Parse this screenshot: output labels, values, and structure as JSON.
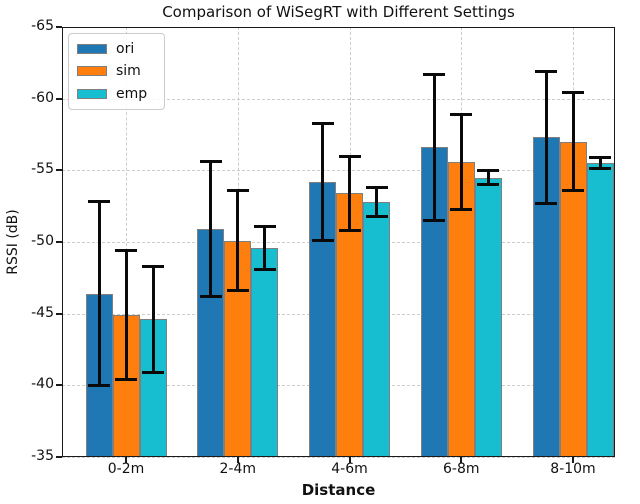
{
  "chart_data": {
    "type": "bar",
    "title": "Comparison of WiSegRT with Different Settings",
    "xlabel": "Distance",
    "ylabel": "RSSI (dB)",
    "categories": [
      "0-2m",
      "2-4m",
      "4-6m",
      "6-8m",
      "8-10m"
    ],
    "series": [
      {
        "name": "ori",
        "color": "#1f77b4",
        "values": [
          -46.4,
          -50.9,
          -54.2,
          -56.6,
          -57.3
        ],
        "errors": [
          6.4,
          4.7,
          4.1,
          5.1,
          4.6
        ]
      },
      {
        "name": "sim",
        "color": "#ff7f0e",
        "values": [
          -44.9,
          -50.1,
          -53.4,
          -55.6,
          -57.0
        ],
        "errors": [
          4.5,
          3.5,
          2.6,
          3.3,
          3.4
        ]
      },
      {
        "name": "emp",
        "color": "#17becf",
        "values": [
          -44.6,
          -49.6,
          -52.8,
          -54.5,
          -55.5
        ],
        "errors": [
          3.7,
          1.5,
          1.0,
          0.5,
          0.4
        ]
      }
    ],
    "yticks": [
      -65,
      -60,
      -55,
      -50,
      -45,
      -40,
      -35
    ],
    "ylim": [
      -65,
      -35
    ],
    "y_axis_inverted": true,
    "baseline": -35,
    "grid": true,
    "grid_color": "#cccccc",
    "bar_edge_color": "#7f7f7f",
    "error_bar_color": "#0a0a0a",
    "legend_position": "upper left"
  }
}
